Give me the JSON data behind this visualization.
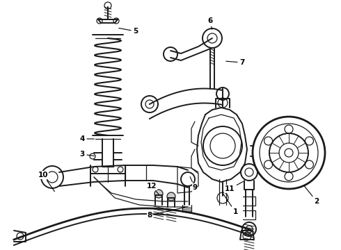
{
  "background_color": "#ffffff",
  "line_color": "#1a1a1a",
  "label_color": "#000000",
  "fig_width": 4.9,
  "fig_height": 3.6,
  "dpi": 100,
  "xlim": [
    0,
    490
  ],
  "ylim": [
    0,
    360
  ]
}
